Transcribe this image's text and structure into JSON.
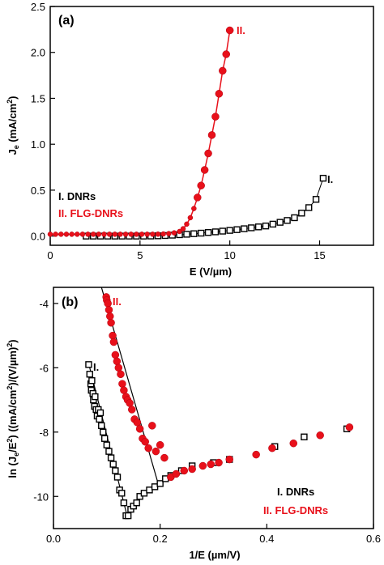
{
  "colors": {
    "dnr": "#000000",
    "flg": "#e8101a",
    "axis": "#000000"
  },
  "chart_data": [
    {
      "type": "scatter",
      "panel_label": "(a)",
      "xlabel": "E (V/µm)",
      "ylabel_main": "J",
      "ylabel_sub": "e",
      "ylabel_rest": " (mA/cm",
      "ylabel_sup": "2",
      "ylabel_end": ")",
      "xlim": [
        0,
        18
      ],
      "ylim": [
        -0.1,
        2.5
      ],
      "xticks": [
        0,
        5,
        10,
        15
      ],
      "yticks": [
        0.0,
        0.5,
        1.0,
        1.5,
        2.0,
        2.5
      ],
      "xtick_labels": [
        "0",
        "5",
        "10",
        "15"
      ],
      "ytick_labels": [
        "0.0",
        "0.5",
        "1.0",
        "1.5",
        "2.0",
        "2.5"
      ],
      "legend": [
        "I. DNRs",
        "II. FLG-DNRs"
      ],
      "annotations": [
        "II.",
        "I."
      ],
      "series": [
        {
          "name": "I. DNRs",
          "marker": "open-square",
          "color": "#000000",
          "x": [
            2.0,
            2.4,
            2.8,
            3.2,
            3.6,
            4.0,
            4.4,
            4.8,
            5.2,
            5.6,
            6.0,
            6.4,
            6.8,
            7.2,
            7.6,
            8.0,
            8.4,
            8.8,
            9.2,
            9.6,
            10.0,
            10.4,
            10.8,
            11.2,
            11.6,
            12.0,
            12.4,
            12.8,
            13.2,
            13.6,
            14.0,
            14.4,
            14.8,
            15.2
          ],
          "y": [
            0.0,
            0.0,
            0.0,
            0.0,
            0.0,
            0.0,
            0.0,
            0.0,
            0.0,
            0.001,
            0.003,
            0.006,
            0.01,
            0.015,
            0.02,
            0.026,
            0.032,
            0.039,
            0.046,
            0.054,
            0.062,
            0.07,
            0.08,
            0.09,
            0.1,
            0.11,
            0.13,
            0.15,
            0.17,
            0.2,
            0.25,
            0.31,
            0.4,
            0.63
          ]
        },
        {
          "name": "II. FLG-DNRs",
          "marker": "filled-circle",
          "color": "#e8101a",
          "x": [
            0.0,
            0.3,
            0.6,
            0.9,
            1.2,
            1.5,
            1.8,
            2.1,
            2.4,
            2.7,
            3.0,
            3.3,
            3.6,
            3.9,
            4.2,
            4.5,
            4.8,
            5.1,
            5.4,
            5.7,
            6.0,
            6.3,
            6.6,
            6.9,
            7.2,
            7.4,
            7.6,
            7.8,
            8.0,
            8.2,
            8.4,
            8.6,
            8.8,
            9.0,
            9.2,
            9.4,
            9.6,
            9.8,
            10.0
          ],
          "y": [
            0.02,
            0.02,
            0.02,
            0.02,
            0.02,
            0.02,
            0.02,
            0.02,
            0.02,
            0.02,
            0.02,
            0.02,
            0.02,
            0.02,
            0.02,
            0.02,
            0.02,
            0.02,
            0.02,
            0.02,
            0.021,
            0.023,
            0.027,
            0.035,
            0.05,
            0.08,
            0.13,
            0.2,
            0.3,
            0.42,
            0.55,
            0.72,
            0.9,
            1.1,
            1.3,
            1.55,
            1.8,
            1.98,
            2.24
          ]
        }
      ]
    },
    {
      "type": "scatter",
      "panel_label": "(b)",
      "xlabel": "1/E (µm/V)",
      "ylabel": "ln (J_e/E²) ((mA/cm²)/(V/µm)²)",
      "xlim": [
        0.0,
        0.6
      ],
      "ylim": [
        -11,
        -3.5
      ],
      "xticks": [
        0.0,
        0.2,
        0.4,
        0.6
      ],
      "yticks": [
        -10,
        -8,
        -6,
        -4
      ],
      "xtick_labels": [
        "0.0",
        "0.2",
        "0.4",
        "0.6"
      ],
      "ytick_labels": [
        "-10",
        "-8",
        "-6",
        "-4"
      ],
      "legend": [
        "I. DNRs",
        "II. FLG-DNRs"
      ],
      "annotations": [
        "II.",
        "I."
      ],
      "series": [
        {
          "name": "I. DNRs",
          "marker": "open-square",
          "color": "#000000",
          "x": [
            0.066,
            0.068,
            0.07,
            0.071,
            0.072,
            0.074,
            0.075,
            0.077,
            0.078,
            0.08,
            0.082,
            0.084,
            0.086,
            0.088,
            0.09,
            0.093,
            0.096,
            0.1,
            0.104,
            0.108,
            0.112,
            0.116,
            0.12,
            0.124,
            0.128,
            0.132,
            0.136,
            0.14,
            0.145,
            0.15,
            0.156,
            0.162,
            0.17,
            0.18,
            0.19,
            0.2,
            0.21,
            0.22,
            0.24,
            0.26,
            0.3,
            0.33,
            0.415,
            0.47,
            0.55
          ],
          "y": [
            -5.9,
            -6.2,
            -6.5,
            -6.7,
            -6.4,
            -6.8,
            -7.0,
            -7.2,
            -6.9,
            -7.3,
            -7.5,
            -7.3,
            -7.6,
            -7.4,
            -7.8,
            -8.0,
            -8.2,
            -8.4,
            -8.6,
            -8.8,
            -9.0,
            -9.2,
            -9.4,
            -9.8,
            -9.9,
            -10.2,
            -10.6,
            -10.6,
            -10.4,
            -10.3,
            -10.2,
            -10.0,
            -9.9,
            -9.8,
            -9.7,
            -9.6,
            -9.45,
            -9.35,
            -9.2,
            -9.05,
            -8.95,
            -8.85,
            -8.45,
            -8.15,
            -7.9
          ]
        },
        {
          "name": "II. FLG-DNRs",
          "marker": "filled-circle",
          "color": "#e8101a",
          "x": [
            0.099,
            0.1,
            0.102,
            0.104,
            0.106,
            0.108,
            0.111,
            0.113,
            0.116,
            0.119,
            0.122,
            0.126,
            0.129,
            0.132,
            0.136,
            0.139,
            0.143,
            0.147,
            0.152,
            0.157,
            0.162,
            0.167,
            0.172,
            0.178,
            0.185,
            0.192,
            0.2,
            0.208,
            0.22,
            0.23,
            0.245,
            0.26,
            0.28,
            0.295,
            0.31,
            0.33,
            0.38,
            0.41,
            0.45,
            0.5,
            0.555
          ],
          "y": [
            -3.8,
            -3.9,
            -4.0,
            -4.2,
            -4.4,
            -4.6,
            -5.0,
            -5.2,
            -5.6,
            -5.8,
            -6.0,
            -6.2,
            -6.5,
            -6.7,
            -6.9,
            -7.0,
            -7.1,
            -7.3,
            -7.6,
            -7.7,
            -7.9,
            -8.2,
            -8.3,
            -8.5,
            -7.8,
            -8.6,
            -8.4,
            -8.8,
            -9.4,
            -9.3,
            -9.2,
            -9.15,
            -9.05,
            -9.0,
            -8.95,
            -8.85,
            -8.7,
            -8.5,
            -8.35,
            -8.1,
            -7.85
          ]
        }
      ],
      "fit_lines": [
        {
          "name": "I. DNRs",
          "x": [
            0.068,
            0.138
          ],
          "y": [
            -6.0,
            -10.6
          ]
        },
        {
          "name": "II. FLG-DNRs",
          "x": [
            0.09,
            0.198
          ],
          "y": [
            -3.5,
            -9.7
          ]
        }
      ]
    }
  ]
}
